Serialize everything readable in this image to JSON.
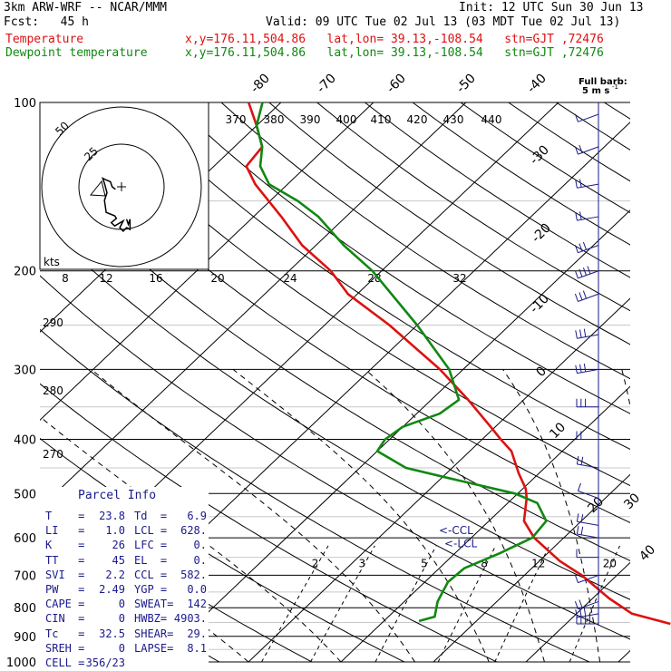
{
  "header": {
    "model": "3km ARW-WRF -- NCAR/MMM",
    "init": "Init: 12 UTC Sun 30 Jun 13",
    "fcst": "Fcst:   45 h",
    "valid": "Valid: 09 UTC Tue 02 Jul 13 (03 MDT Tue 02 Jul 13)",
    "temp_label": "Temperature",
    "temp_loc": "x,y=176.11,504.86   lat,lon= 39.13,-108.54   stn=GJT ,72476",
    "dew_label": "Dewpoint temperature",
    "dew_loc": "x,y=176.11,504.86   lat,lon= 39.13,-108.54   stn=GJT ,72476"
  },
  "colors": {
    "temperature": "#dd1111",
    "dewpoint": "#118811",
    "wind_barbs": "#1a1a8c",
    "parcel_text": "#1a1a8c",
    "grid": "#000000"
  },
  "barb_legend": {
    "line1": "Full barb:",
    "line2": "5 m s",
    "superscript": "-1"
  },
  "hodograph": {
    "unit_label": "kts",
    "ring_labels": [
      "50",
      "25"
    ],
    "speed_ticks": [
      "8",
      "12",
      "16",
      "20",
      "24",
      "28",
      "32"
    ],
    "theta_top": [
      "370",
      "380",
      "390",
      "400",
      "410",
      "420",
      "430",
      "440"
    ],
    "trace_kts": [
      [
        -3.5,
        -1.5
      ],
      [
        -5.5,
        0
      ],
      [
        -6.5,
        3
      ],
      [
        -9,
        4
      ],
      [
        -11,
        5
      ],
      [
        -10,
        2
      ],
      [
        -8.5,
        -3.5
      ],
      [
        -10,
        -8
      ],
      [
        -9,
        -15
      ],
      [
        -4,
        -17
      ],
      [
        -3,
        -18.5
      ],
      [
        -6,
        -21
      ],
      [
        -4,
        -23
      ],
      [
        1,
        -20
      ],
      [
        -1,
        -24
      ],
      [
        1,
        -26
      ],
      [
        3,
        -24
      ],
      [
        5,
        -25
      ],
      [
        5,
        -19
      ],
      [
        4,
        -22
      ],
      [
        3,
        -19
      ]
    ]
  },
  "chart_data": {
    "type": "line",
    "subtype": "skew-T log-P sounding",
    "pressure_ticks": [
      "100",
      "200",
      "300",
      "400",
      "500",
      "600",
      "700",
      "800",
      "900",
      "1000"
    ],
    "pressure_levels_hPa": [
      100,
      200,
      300,
      400,
      500,
      600,
      700,
      800,
      900,
      1000
    ],
    "skew_temp_labels_C": [
      "-80",
      "-70",
      "-60",
      "-50",
      "-40",
      "-30",
      "-20",
      "-10",
      "0",
      "10",
      "20",
      "30",
      "40"
    ],
    "dry_adiabat_labels_K": [
      "290",
      "280",
      "270"
    ],
    "mixing_ratio_labels_gkg": [
      "2",
      "3",
      "5",
      "8",
      "12",
      "20"
    ],
    "lcl_marker": "<-LCL",
    "ccl_marker": "<-CCL",
    "series": [
      {
        "name": "Temperature",
        "points_p_T": [
          [
            855,
            31.3
          ],
          [
            820,
            26
          ],
          [
            770,
            21.8
          ],
          [
            700,
            16.2
          ],
          [
            660,
            12.2
          ],
          [
            600,
            6.8
          ],
          [
            560,
            3.8
          ],
          [
            510,
            1.5
          ],
          [
            490,
            0.3
          ],
          [
            460,
            -2.2
          ],
          [
            420,
            -5.5
          ],
          [
            400,
            -8
          ],
          [
            380,
            -10.5
          ],
          [
            340,
            -16
          ],
          [
            300,
            -22.5
          ],
          [
            250,
            -33
          ],
          [
            220,
            -41
          ],
          [
            200,
            -45.5
          ],
          [
            180,
            -51.5
          ],
          [
            160,
            -57
          ],
          [
            140,
            -63.5
          ],
          [
            130,
            -66.5
          ],
          [
            120,
            -67
          ],
          [
            110,
            -70
          ],
          [
            100,
            -73.5
          ]
        ]
      },
      {
        "name": "Dewpoint temperature",
        "points_p_T": [
          [
            845,
            3.8
          ],
          [
            830,
            5
          ],
          [
            780,
            3.6
          ],
          [
            720,
            2.5
          ],
          [
            680,
            2.7
          ],
          [
            640,
            4.8
          ],
          [
            600,
            6.6
          ],
          [
            560,
            6.2
          ],
          [
            520,
            3.2
          ],
          [
            500,
            -0.3
          ],
          [
            470,
            -9
          ],
          [
            450,
            -15
          ],
          [
            420,
            -20
          ],
          [
            400,
            -20.5
          ],
          [
            380,
            -20
          ],
          [
            360,
            -17.5
          ],
          [
            340,
            -17
          ],
          [
            300,
            -21.5
          ],
          [
            250,
            -30
          ],
          [
            200,
            -41
          ],
          [
            180,
            -47
          ],
          [
            160,
            -53
          ],
          [
            150,
            -57
          ],
          [
            140,
            -62
          ],
          [
            130,
            -65
          ],
          [
            120,
            -67
          ],
          [
            110,
            -70
          ],
          [
            100,
            -72
          ]
        ]
      }
    ],
    "wind_profile": [
      {
        "p": 855,
        "dir": 270,
        "ms": 22
      },
      {
        "p": 820,
        "dir": 260,
        "ms": 18
      },
      {
        "p": 780,
        "dir": 250,
        "ms": 12
      },
      {
        "p": 700,
        "dir": 250,
        "ms": 8
      },
      {
        "p": 650,
        "dir": 270,
        "ms": 8
      },
      {
        "p": 600,
        "dir": 280,
        "ms": 10
      },
      {
        "p": 570,
        "dir": 280,
        "ms": 10
      },
      {
        "p": 510,
        "dir": 290,
        "ms": 5
      },
      {
        "p": 450,
        "dir": 280,
        "ms": 10
      },
      {
        "p": 400,
        "dir": 270,
        "ms": 10
      },
      {
        "p": 350,
        "dir": 270,
        "ms": 15
      },
      {
        "p": 300,
        "dir": 260,
        "ms": 15
      },
      {
        "p": 260,
        "dir": 260,
        "ms": 15
      },
      {
        "p": 220,
        "dir": 250,
        "ms": 15
      },
      {
        "p": 200,
        "dir": 250,
        "ms": 20
      },
      {
        "p": 180,
        "dir": 250,
        "ms": 15
      },
      {
        "p": 160,
        "dir": 260,
        "ms": 10
      },
      {
        "p": 140,
        "dir": 260,
        "ms": 10
      },
      {
        "p": 120,
        "dir": 250,
        "ms": 10
      },
      {
        "p": 105,
        "dir": 250,
        "ms": 5
      }
    ]
  },
  "parcel_info": {
    "title": "Parcel Info",
    "rows": [
      [
        "T    =",
        "23.8",
        "Td  =",
        "6.9"
      ],
      [
        "LI   =",
        "1.0",
        "LCL =",
        "628."
      ],
      [
        "K    =",
        "26",
        "LFC =",
        "0."
      ],
      [
        "TT   =",
        "45",
        "EL  =",
        "0."
      ],
      [
        "SVI  =",
        "2.2",
        "CCL =",
        "582."
      ],
      [
        "PW   =",
        "2.49",
        "YGP =",
        "0.0"
      ],
      [
        "CAPE =",
        "0",
        "SWEAT=",
        "142"
      ],
      [
        "CIN  =",
        "0",
        "HWBZ=",
        "4903."
      ],
      [
        "Tc   =",
        "32.5",
        "SHEAR=",
        "29."
      ],
      [
        "SREH =",
        "0",
        "LAPSE=",
        "8.1"
      ],
      [
        "CELL =",
        "356/23",
        "",
        ""
      ]
    ]
  }
}
